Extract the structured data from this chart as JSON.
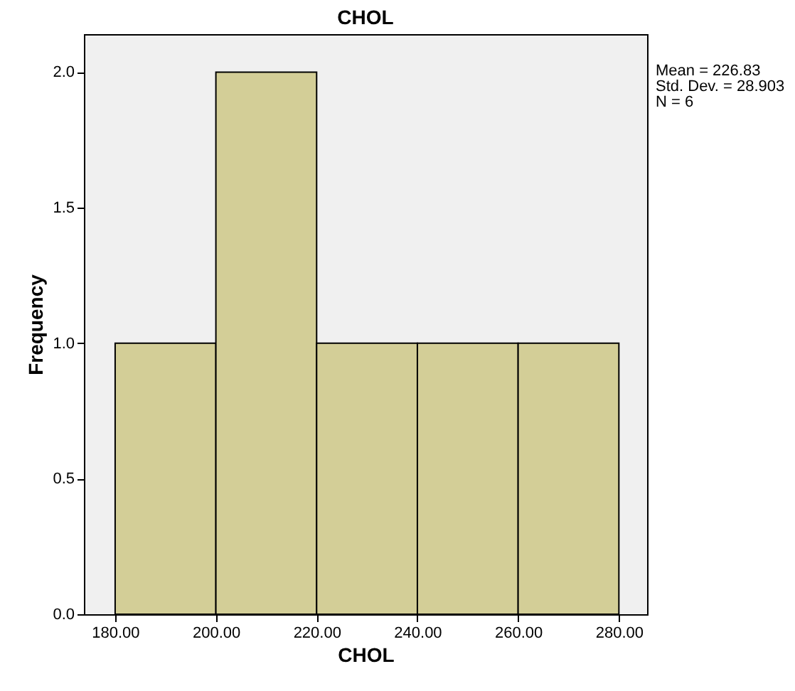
{
  "chart_data": {
    "type": "histogram",
    "title": "CHOL",
    "xlabel": "CHOL",
    "ylabel": "Frequency",
    "bins": [
      180,
      200,
      220,
      240,
      260,
      280
    ],
    "values": [
      1,
      2,
      1,
      1,
      1
    ],
    "color": "#d3ce97",
    "xlim": [
      173.8,
      285.6
    ],
    "xticks": [
      {
        "value": 180,
        "label": "180.00"
      },
      {
        "value": 200,
        "label": "200.00"
      },
      {
        "value": 220,
        "label": "220.00"
      },
      {
        "value": 240,
        "label": "240.00"
      },
      {
        "value": 260,
        "label": "260.00"
      },
      {
        "value": 280,
        "label": "280.00"
      }
    ],
    "ylim": [
      0,
      2.14
    ],
    "yticks": [
      {
        "value": 0,
        "label": "0.0"
      },
      {
        "value": 0.5,
        "label": "0.5"
      },
      {
        "value": 1,
        "label": "1.0"
      },
      {
        "value": 1.5,
        "label": "1.5"
      },
      {
        "value": 2,
        "label": "2.0"
      }
    ],
    "grid": false,
    "annotations": [
      "Mean = 226.83",
      "Std. Dev. = 28.903",
      "N = 6"
    ]
  }
}
